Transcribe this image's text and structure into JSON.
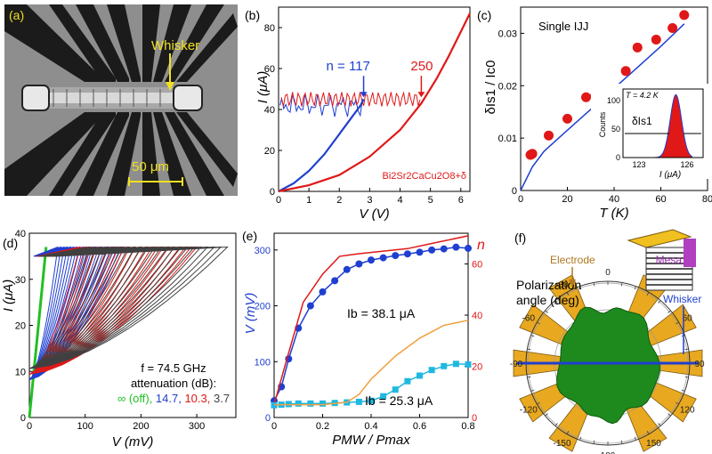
{
  "figure": {
    "panel_a": {
      "label": "(a)",
      "whisker_label": "Whisker",
      "scale_label": "50 μm"
    },
    "panel_f": {
      "label": "(f)",
      "title_line1": "Polarization",
      "title_line2": "angle (deg)",
      "electrode_label": "Electrode",
      "mesa_label": "Mesa",
      "whisker_label": "Whisker",
      "angle_labels": [
        "0",
        "30",
        "60",
        "90",
        "120",
        "150",
        "180",
        "-150",
        "-120",
        "-90",
        "-60",
        "-30"
      ]
    }
  },
  "colors": {
    "blue": "#1f3fd0",
    "red": "#e01818",
    "gray": "#404040",
    "green": "#22c022",
    "orange": "#f0a040",
    "cyan": "#20b8e0",
    "gold": "#e8a820",
    "lobe": "#1e8a1e"
  },
  "chart_data": [
    {
      "type": "line",
      "panel": "(b)",
      "title": "",
      "xlabel": "V (V)",
      "ylabel": "I (μA)",
      "xlim": [
        0,
        6.3
      ],
      "ylim": [
        0,
        90
      ],
      "xticks": [
        0,
        1,
        2,
        3,
        4,
        5,
        6
      ],
      "yticks": [
        0,
        20,
        40,
        60,
        80
      ],
      "material": "Bi2Sr2CaCu2O8+δ",
      "annotations": [
        {
          "text": "n = 117",
          "x": 2.8,
          "y": 46,
          "color": "blue"
        },
        {
          "text": "250",
          "x": 4.7,
          "y": 46,
          "color": "red"
        }
      ],
      "series": [
        {
          "name": "n = 117",
          "color": "blue",
          "x": [
            0,
            0.5,
            1.0,
            1.5,
            2.0,
            2.4,
            2.7,
            2.8
          ],
          "y": [
            0,
            4,
            10,
            18,
            28,
            36,
            42,
            45
          ]
        },
        {
          "name": "n = 250",
          "color": "red",
          "x": [
            0,
            1,
            2,
            3,
            4,
            4.7,
            5.2,
            5.6,
            6.0,
            6.3
          ],
          "y": [
            0,
            3,
            8,
            17,
            30,
            43,
            55,
            66,
            78,
            87
          ]
        }
      ]
    },
    {
      "type": "scatter",
      "panel": "(c)",
      "title": "Single IJJ",
      "xlabel": "T (K)",
      "ylabel": "δIs1 / Ic0",
      "xlim": [
        0,
        80
      ],
      "ylim": [
        0,
        0.035
      ],
      "xticks": [
        0,
        20,
        40,
        60,
        80
      ],
      "yticks": [
        0,
        0.01,
        0.02,
        0.03
      ],
      "points": {
        "x": [
          4.2,
          5,
          12,
          20,
          28,
          32,
          38,
          45,
          50,
          58,
          65,
          70
        ],
        "y": [
          0.0068,
          0.007,
          0.0105,
          0.0137,
          0.0178,
          0.0182,
          0.0188,
          0.0228,
          0.0273,
          0.0288,
          0.031,
          0.0335
        ]
      },
      "fit": {
        "x": [
          0,
          5,
          10,
          20,
          30,
          40,
          50,
          60,
          70
        ],
        "y": [
          0,
          0.0045,
          0.0075,
          0.0115,
          0.0155,
          0.0195,
          0.0235,
          0.0275,
          0.0318
        ]
      },
      "inset": {
        "title": "T = 4.2 K",
        "xlabel": "I (μA)",
        "ylabel": "Counts",
        "annotation": "δIs1",
        "xlim": [
          122,
          127
        ],
        "ylim": [
          0,
          120
        ],
        "xticks": [
          123,
          126
        ],
        "yticks": [
          0,
          50,
          100
        ],
        "histogram_peak": 125.3,
        "histogram_max": 110
      }
    },
    {
      "type": "line",
      "panel": "(d)",
      "title": "",
      "xlabel": "V (mV)",
      "ylabel": "I (μA)",
      "xlim": [
        0,
        370
      ],
      "ylim": [
        0,
        40
      ],
      "xticks": [
        0,
        100,
        200,
        300
      ],
      "yticks": [
        0,
        10,
        20,
        30,
        40
      ],
      "annotation_line1": "f = 74.5 GHz",
      "annotation_line2": "attenuation (dB):",
      "legend": [
        {
          "text": "∞ (off),",
          "color": "green"
        },
        {
          "text": "14.7,",
          "color": "blue"
        },
        {
          "text": "10.3,",
          "color": "red"
        },
        {
          "text": "3.7",
          "color": "gray"
        }
      ],
      "series": [
        {
          "name": "off",
          "color": "green",
          "v_end": 30,
          "i_max": 37
        },
        {
          "name": "14.7 dB",
          "color": "blue",
          "v_end": 170,
          "i_max": 37
        },
        {
          "name": "10.3 dB",
          "color": "red",
          "v_end": 300,
          "i_max": 37
        },
        {
          "name": "3.7 dB",
          "color": "gray",
          "v_end": 355,
          "i_max": 37
        }
      ]
    },
    {
      "type": "line",
      "panel": "(e)",
      "title": "",
      "xlabel": "PMW / Pmax",
      "ylabel": "V (mV)",
      "ylabel_right": "n",
      "xlim": [
        0,
        0.8
      ],
      "ylim": [
        0,
        330
      ],
      "ylim_right": [
        0,
        72
      ],
      "xticks": [
        0,
        0.2,
        0.4,
        0.6,
        0.8
      ],
      "yticks": [
        0,
        100,
        200,
        300
      ],
      "yticks_right": [
        0,
        20,
        40,
        60
      ],
      "annotations": [
        {
          "text": "Ib = 38.1 μA"
        },
        {
          "text": "Ib = 25.3 μA"
        }
      ],
      "series": [
        {
          "name": "V, Ib = 38.1 μA",
          "color": "blue",
          "axis": "left",
          "markers": true,
          "x": [
            0,
            0.03,
            0.06,
            0.1,
            0.15,
            0.2,
            0.25,
            0.3,
            0.35,
            0.4,
            0.45,
            0.5,
            0.55,
            0.6,
            0.65,
            0.7,
            0.75,
            0.8
          ],
          "y": [
            30,
            55,
            105,
            160,
            200,
            225,
            245,
            265,
            275,
            282,
            286,
            290,
            293,
            296,
            300,
            302,
            305,
            303
          ]
        },
        {
          "name": "n, Ib = 38.1 μA",
          "color": "red",
          "axis": "right",
          "x": [
            0,
            0.05,
            0.12,
            0.2,
            0.27,
            0.35,
            0.45,
            0.55,
            0.65,
            0.8
          ],
          "y": [
            5,
            22,
            45,
            56,
            63,
            64,
            65,
            66,
            68,
            71
          ]
        },
        {
          "name": "V, Ib = 25.3 μA",
          "color": "cyan",
          "axis": "left",
          "markers": true,
          "x": [
            0,
            0.03,
            0.06,
            0.1,
            0.15,
            0.2,
            0.25,
            0.3,
            0.35,
            0.4,
            0.45,
            0.5,
            0.55,
            0.6,
            0.65,
            0.7,
            0.75,
            0.8
          ],
          "y": [
            22,
            23,
            24,
            25,
            25,
            25,
            26,
            27,
            28,
            30,
            38,
            50,
            65,
            75,
            85,
            92,
            96,
            95
          ]
        },
        {
          "name": "n, Ib = 25.3 μA",
          "color": "orange",
          "axis": "right",
          "x": [
            0,
            0.2,
            0.3,
            0.35,
            0.4,
            0.5,
            0.6,
            0.7,
            0.8
          ],
          "y": [
            5,
            5,
            6,
            9,
            15,
            24,
            31,
            36,
            38
          ]
        }
      ]
    }
  ]
}
